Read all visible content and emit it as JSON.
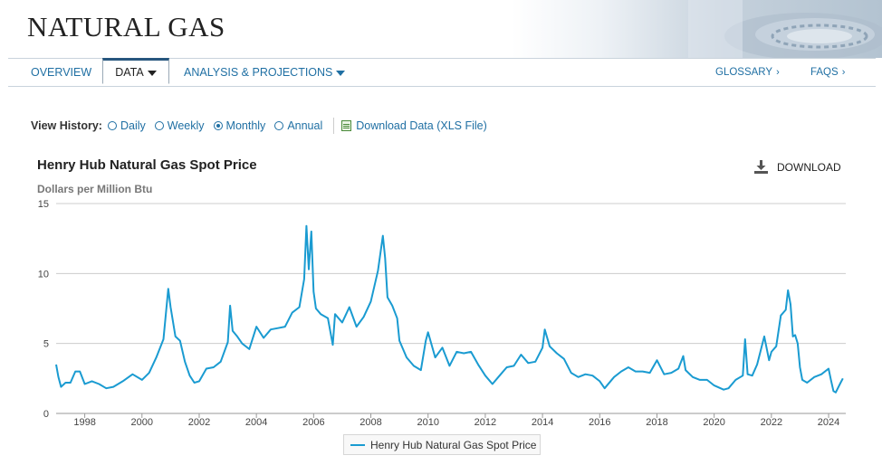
{
  "site_title": "NATURAL GAS",
  "nav": {
    "overview": "OVERVIEW",
    "data": "DATA",
    "analysis": "ANALYSIS & PROJECTIONS",
    "glossary": "GLOSSARY",
    "faqs": "FAQS",
    "chevron": "›"
  },
  "view_history": {
    "label": "View History:",
    "options": [
      {
        "label": "Daily",
        "checked": false
      },
      {
        "label": "Weekly",
        "checked": false
      },
      {
        "label": "Monthly",
        "checked": true
      },
      {
        "label": "Annual",
        "checked": false
      }
    ],
    "download_link": "Download Data (XLS File)"
  },
  "chart_header": {
    "title": "Henry Hub Natural Gas Spot Price",
    "units": "Dollars per Million Btu",
    "download_label": "DOWNLOAD"
  },
  "colors": {
    "series": "#1a9bd1",
    "link": "#1f6fa3",
    "grid": "#cccccc"
  },
  "chart_data": {
    "type": "line",
    "title": "Henry Hub Natural Gas Spot Price",
    "ylabel": "Dollars per Million Btu",
    "ylim": [
      0,
      15
    ],
    "yticks": [
      0,
      5,
      10,
      15
    ],
    "xlim": [
      1997,
      2024.6
    ],
    "xticks": [
      1998,
      2000,
      2002,
      2004,
      2006,
      2008,
      2010,
      2012,
      2014,
      2016,
      2018,
      2020,
      2022,
      2024
    ],
    "grid": "horizontal",
    "legend_position": "bottom-center",
    "series": [
      {
        "name": "Henry Hub Natural Gas Spot Price",
        "x": [
          1997.0,
          1997.08,
          1997.17,
          1997.33,
          1997.5,
          1997.67,
          1997.83,
          1998.0,
          1998.25,
          1998.5,
          1998.75,
          1999.0,
          1999.33,
          1999.67,
          2000.0,
          2000.25,
          2000.5,
          2000.75,
          2000.92,
          2001.0,
          2001.17,
          2001.33,
          2001.5,
          2001.67,
          2001.83,
          2002.0,
          2002.25,
          2002.5,
          2002.75,
          2003.0,
          2003.08,
          2003.17,
          2003.33,
          2003.5,
          2003.75,
          2004.0,
          2004.25,
          2004.5,
          2004.75,
          2005.0,
          2005.25,
          2005.5,
          2005.67,
          2005.75,
          2005.83,
          2005.92,
          2006.0,
          2006.08,
          2006.25,
          2006.5,
          2006.67,
          2006.75,
          2007.0,
          2007.25,
          2007.5,
          2007.75,
          2008.0,
          2008.25,
          2008.42,
          2008.5,
          2008.58,
          2008.75,
          2008.92,
          2009.0,
          2009.25,
          2009.5,
          2009.75,
          2009.92,
          2010.0,
          2010.25,
          2010.5,
          2010.75,
          2011.0,
          2011.25,
          2011.5,
          2011.75,
          2012.0,
          2012.25,
          2012.5,
          2012.75,
          2013.0,
          2013.25,
          2013.5,
          2013.75,
          2014.0,
          2014.08,
          2014.25,
          2014.5,
          2014.75,
          2015.0,
          2015.25,
          2015.5,
          2015.75,
          2016.0,
          2016.17,
          2016.5,
          2016.75,
          2017.0,
          2017.25,
          2017.5,
          2017.75,
          2018.0,
          2018.25,
          2018.5,
          2018.75,
          2018.92,
          2019.0,
          2019.25,
          2019.5,
          2019.75,
          2020.0,
          2020.33,
          2020.5,
          2020.75,
          2021.0,
          2021.08,
          2021.17,
          2021.33,
          2021.5,
          2021.75,
          2021.92,
          2022.0,
          2022.17,
          2022.33,
          2022.5,
          2022.58,
          2022.67,
          2022.75,
          2022.83,
          2022.92,
          2023.0,
          2023.08,
          2023.25,
          2023.5,
          2023.75,
          2024.0,
          2024.08,
          2024.17,
          2024.25,
          2024.42,
          2024.5
        ],
        "y": [
          3.5,
          2.6,
          1.9,
          2.2,
          2.2,
          3.0,
          3.0,
          2.1,
          2.3,
          2.1,
          1.8,
          1.9,
          2.3,
          2.8,
          2.4,
          2.9,
          4.0,
          5.3,
          8.9,
          7.6,
          5.5,
          5.2,
          3.7,
          2.7,
          2.2,
          2.3,
          3.2,
          3.3,
          3.7,
          5.1,
          7.7,
          5.9,
          5.5,
          5.0,
          4.6,
          6.2,
          5.4,
          6.0,
          6.1,
          6.2,
          7.2,
          7.6,
          9.6,
          13.4,
          10.3,
          13.0,
          8.7,
          7.5,
          7.1,
          6.8,
          4.9,
          7.1,
          6.5,
          7.6,
          6.2,
          6.9,
          8.0,
          10.2,
          12.7,
          11.1,
          8.3,
          7.7,
          6.8,
          5.2,
          4.0,
          3.4,
          3.1,
          5.2,
          5.8,
          4.0,
          4.7,
          3.4,
          4.4,
          4.3,
          4.4,
          3.5,
          2.7,
          2.1,
          2.7,
          3.3,
          3.4,
          4.2,
          3.6,
          3.7,
          4.7,
          6.0,
          4.8,
          4.3,
          3.9,
          2.9,
          2.6,
          2.8,
          2.7,
          2.3,
          1.8,
          2.6,
          3.0,
          3.3,
          3.0,
          3.0,
          2.9,
          3.8,
          2.8,
          2.9,
          3.2,
          4.1,
          3.1,
          2.6,
          2.4,
          2.4,
          2.0,
          1.7,
          1.8,
          2.4,
          2.7,
          5.3,
          2.8,
          2.7,
          3.5,
          5.5,
          3.8,
          4.4,
          4.8,
          7.0,
          7.4,
          8.8,
          7.8,
          5.5,
          5.6,
          5.0,
          3.3,
          2.4,
          2.2,
          2.6,
          2.8,
          3.2,
          2.4,
          1.6,
          1.5,
          2.2,
          2.5
        ]
      }
    ]
  }
}
